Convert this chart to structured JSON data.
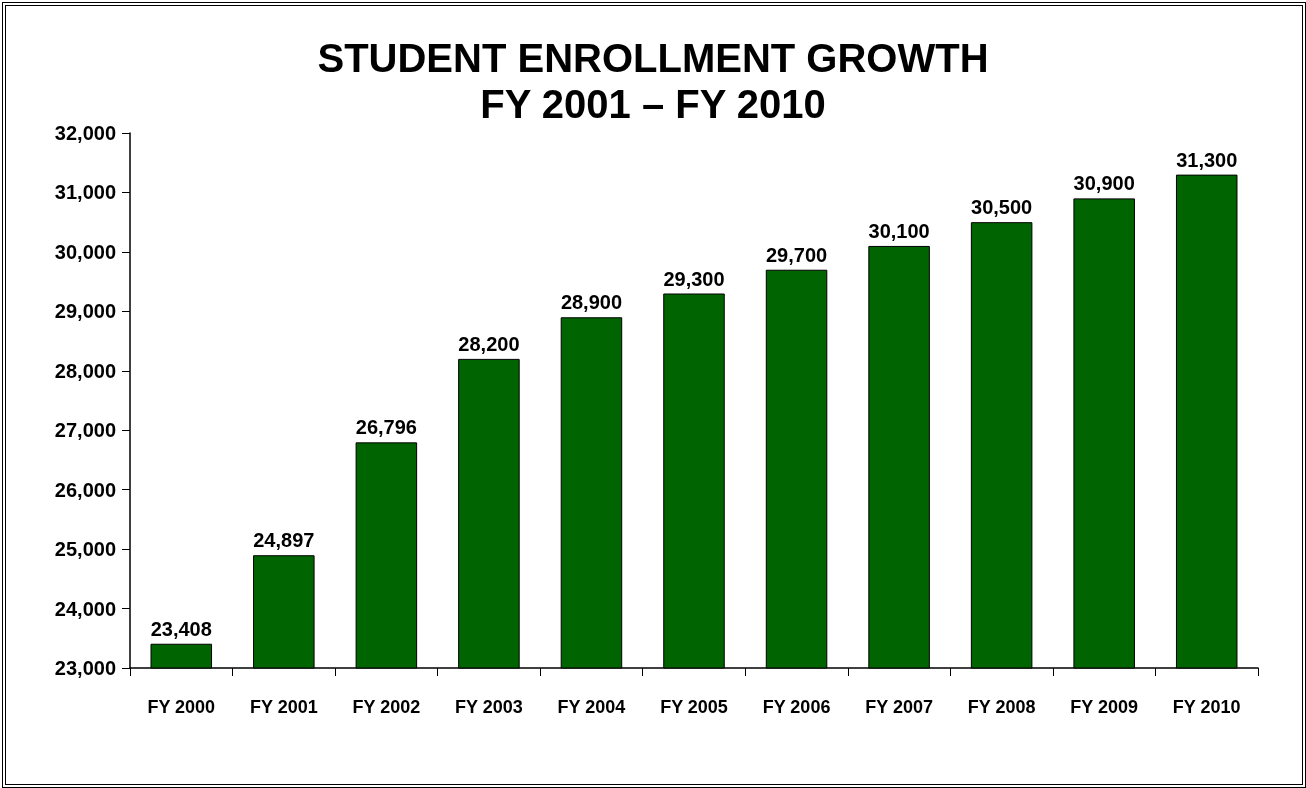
{
  "chart_data": {
    "type": "bar",
    "title": "STUDENT ENROLLMENT GROWTH\nFY 2001 – FY 2010",
    "categories": [
      "FY 2000",
      "FY 2001",
      "FY 2002",
      "FY 2003",
      "FY 2004",
      "FY 2005",
      "FY 2006",
      "FY 2007",
      "FY 2008",
      "FY 2009",
      "FY 2010"
    ],
    "values": [
      23408,
      24897,
      26796,
      28200,
      28900,
      29300,
      29700,
      30100,
      30500,
      30900,
      31300
    ],
    "value_labels": [
      "23,408",
      "24,897",
      "26,796",
      "28,200",
      "28,900",
      "29,300",
      "29,700",
      "30,100",
      "30,500",
      "30,900",
      "31,300"
    ],
    "color": "#006400",
    "ylim": [
      23000,
      32000
    ],
    "yticks": [
      {
        "value": 23000,
        "label": "23,000"
      },
      {
        "value": 24000,
        "label": "24,000"
      },
      {
        "value": 25000,
        "label": "25,000"
      },
      {
        "value": 26000,
        "label": "26,000"
      },
      {
        "value": 27000,
        "label": "27,000"
      },
      {
        "value": 28000,
        "label": "28,000"
      },
      {
        "value": 29000,
        "label": "29,000"
      },
      {
        "value": 30000,
        "label": "30,000"
      },
      {
        "value": 31000,
        "label": "31,000"
      },
      {
        "value": 32000,
        "label": "32,000"
      }
    ],
    "grid": false
  }
}
